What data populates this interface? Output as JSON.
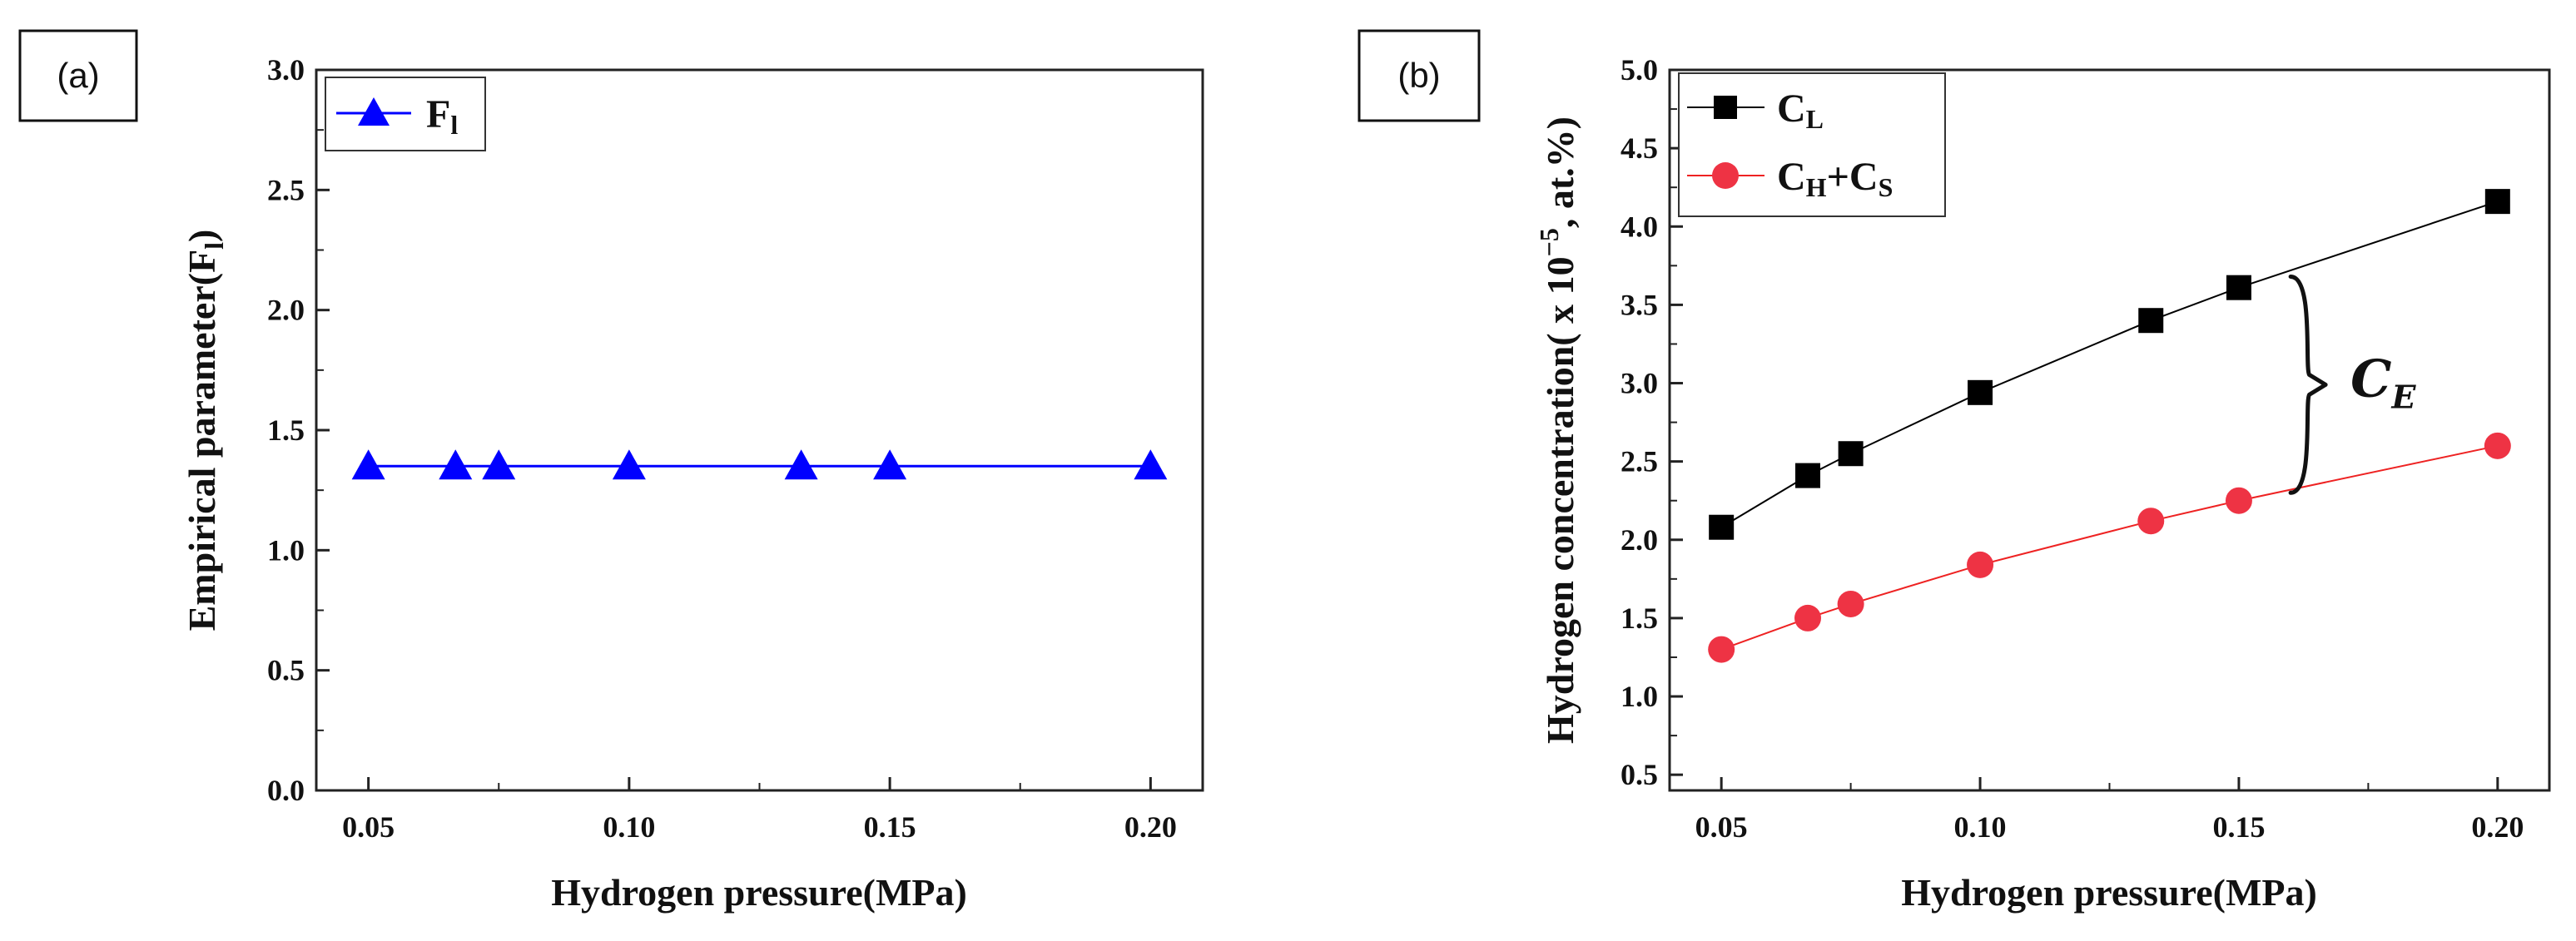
{
  "colors": {
    "blue": "#0000ff",
    "black": "#000000",
    "red": "#ee3344",
    "red_line": "#ee2222",
    "axis": "#222222"
  },
  "chart_data": [
    {
      "panel": "(a)",
      "type": "line",
      "title": "",
      "xlabel": "Hydrogen pressure(MPa)",
      "ylabel_prefix": "Empirical parameter(F",
      "ylabel_sub": "l",
      "ylabel_suffix": ")",
      "xlim": [
        0.04,
        0.21
      ],
      "ylim": [
        0.0,
        3.0
      ],
      "x_ticks": [
        0.05,
        0.1,
        0.15,
        0.2
      ],
      "x_tick_labels": [
        "0.05",
        "0.10",
        "0.15",
        "0.20"
      ],
      "y_ticks": [
        0.0,
        0.5,
        1.0,
        1.5,
        2.0,
        2.5,
        3.0
      ],
      "y_tick_labels": [
        "0.0",
        "0.5",
        "1.0",
        "1.5",
        "2.0",
        "2.5",
        "3.0"
      ],
      "legend_position": "top-left",
      "series": [
        {
          "name": "F",
          "name_sub": "l",
          "marker": "triangle",
          "color": "#0000ff",
          "x": [
            0.05,
            0.0667,
            0.075,
            0.1,
            0.133,
            0.15,
            0.2
          ],
          "y": [
            1.35,
            1.35,
            1.35,
            1.35,
            1.35,
            1.35,
            1.35
          ]
        }
      ]
    },
    {
      "panel": "(b)",
      "type": "line",
      "title": "",
      "xlabel": "Hydrogen pressure(MPa)",
      "ylabel_prefix": "Hydrogen concentration( x 10",
      "ylabel_sup": "−5",
      "ylabel_suffix": ", at.%)",
      "xlim": [
        0.04,
        0.21
      ],
      "ylim": [
        0.4,
        5.0
      ],
      "x_ticks": [
        0.05,
        0.1,
        0.15,
        0.2
      ],
      "x_tick_labels": [
        "0.05",
        "0.10",
        "0.15",
        "0.20"
      ],
      "y_ticks": [
        0.5,
        1.0,
        1.5,
        2.0,
        2.5,
        3.0,
        3.5,
        4.0,
        4.5,
        5.0
      ],
      "y_tick_labels": [
        "0.5",
        "1.0",
        "1.5",
        "2.0",
        "2.5",
        "3.0",
        "3.5",
        "4.0",
        "4.5",
        "5.0"
      ],
      "legend_position": "top-left",
      "annotation": {
        "text": "C",
        "sub": "E",
        "x": 0.16,
        "y_from": 2.3,
        "y_to": 3.68
      },
      "series": [
        {
          "name": "C",
          "name_sub": "L",
          "name_tail": "",
          "marker": "square",
          "color": "#000000",
          "x": [
            0.05,
            0.0667,
            0.075,
            0.1,
            0.133,
            0.15,
            0.2
          ],
          "y": [
            2.08,
            2.41,
            2.55,
            2.94,
            3.4,
            3.61,
            4.16
          ]
        },
        {
          "name": "C",
          "name_sub": "H",
          "name_tail": "+C",
          "name_tail_sub": "S",
          "marker": "circle",
          "color": "#ee3344",
          "x": [
            0.05,
            0.0667,
            0.075,
            0.1,
            0.133,
            0.15,
            0.2
          ],
          "y": [
            1.3,
            1.5,
            1.59,
            1.84,
            2.12,
            2.25,
            2.6
          ]
        }
      ]
    }
  ]
}
